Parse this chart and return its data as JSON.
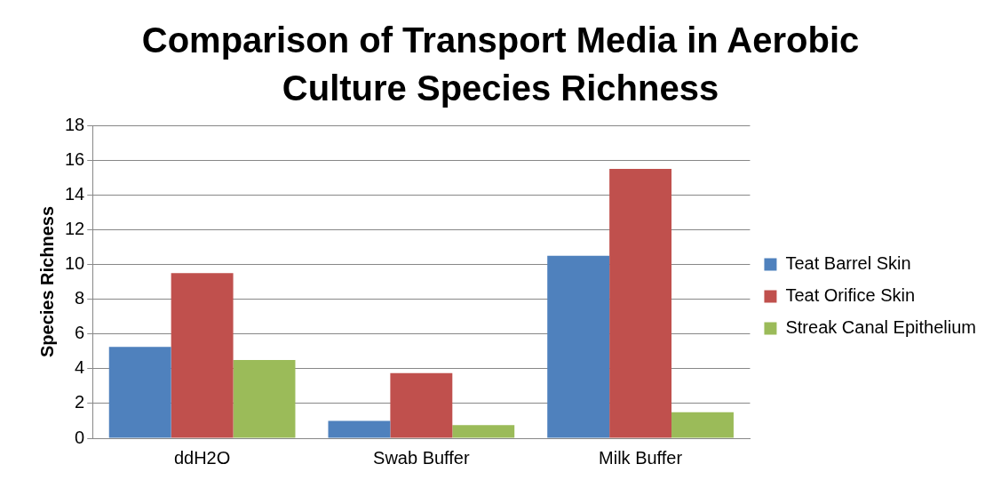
{
  "chart_data": {
    "type": "bar",
    "title": "Comparison of Transport Media in Aerobic Culture Species Richness",
    "ylabel": "Species Richness",
    "categories": [
      "ddH2O",
      "Swab Buffer",
      "Milk Buffer"
    ],
    "series": [
      {
        "name": "Teat Barrel Skin",
        "color": "#4f81bd",
        "values": [
          5.25,
          1,
          10.5
        ]
      },
      {
        "name": "Teat Orifice Skin",
        "color": "#c0504d",
        "values": [
          9.5,
          3.75,
          15.5
        ]
      },
      {
        "name": "Streak Canal Epithelium",
        "color": "#9bbb59",
        "values": [
          4.5,
          0.75,
          1.5
        ]
      }
    ],
    "ylim": [
      0,
      18
    ],
    "yticks": [
      0,
      2,
      4,
      6,
      8,
      10,
      12,
      14,
      16,
      18
    ],
    "grid": "y",
    "legend": "right"
  }
}
